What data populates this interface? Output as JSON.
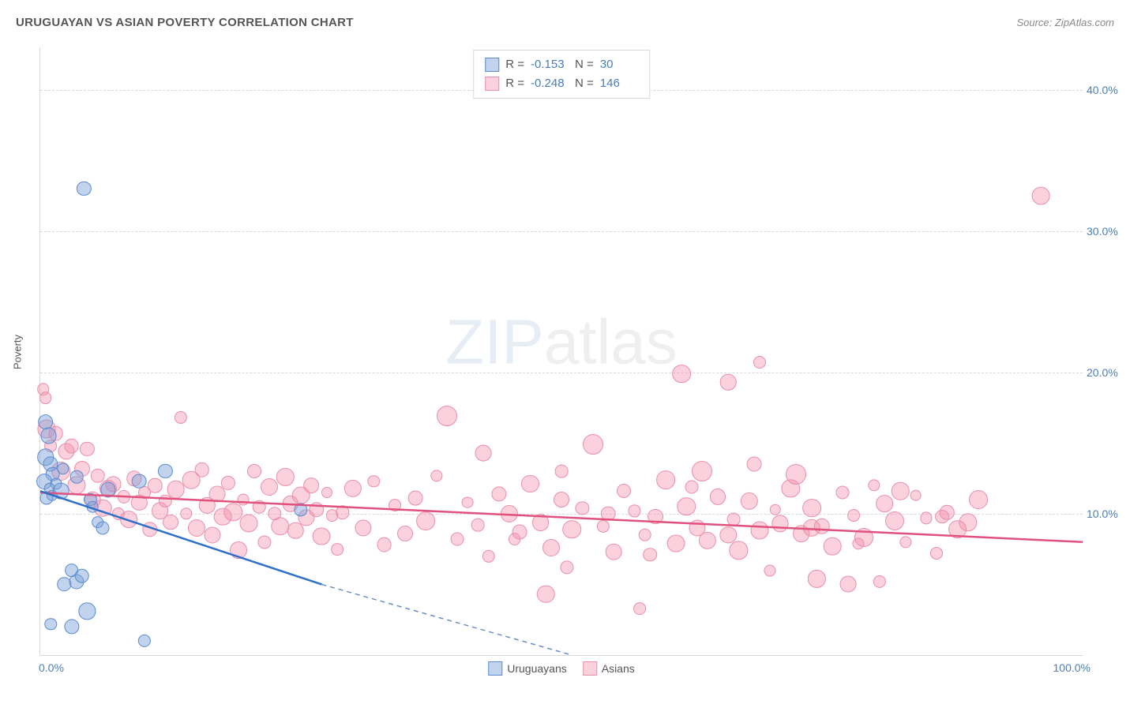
{
  "header": {
    "title": "URUGUAYAN VS ASIAN POVERTY CORRELATION CHART",
    "source": "Source: ZipAtlas.com"
  },
  "axes": {
    "y_label": "Poverty",
    "x_min": 0,
    "x_max": 100,
    "y_min": 0,
    "y_max": 43,
    "y_ticks": [
      10,
      20,
      30,
      40
    ],
    "y_tick_labels": [
      "10.0%",
      "20.0%",
      "30.0%",
      "40.0%"
    ],
    "x_tick_left": "0.0%",
    "x_tick_right": "100.0%",
    "grid_color": "#d9d9d9",
    "tick_color": "#4a7ebb",
    "tick_fontsize": 14,
    "label_fontsize": 13
  },
  "watermark": {
    "text_bold": "ZIP",
    "text_light": "atlas"
  },
  "series": {
    "uruguayans": {
      "label": "Uruguayans",
      "fill": "rgba(120,160,216,0.45)",
      "stroke": "#5b8bd0",
      "marker_radius_min": 7,
      "marker_radius_max": 11,
      "trend": {
        "x1": 0,
        "y1": 11.6,
        "x2": 27,
        "y2": 5.0,
        "x2_ext": 51,
        "y2_ext": 0.0,
        "solid_color": "#2f6fc9",
        "dash_color": "#6a8fc0",
        "width": 2.5
      },
      "R": "-0.153",
      "N": "30",
      "points": [
        [
          0.5,
          16.5
        ],
        [
          0.8,
          15.5
        ],
        [
          0.5,
          14.0
        ],
        [
          1.0,
          13.5
        ],
        [
          1.2,
          12.8
        ],
        [
          0.4,
          12.3
        ],
        [
          1.5,
          12.1
        ],
        [
          0.9,
          11.8
        ],
        [
          2.0,
          11.6
        ],
        [
          1.1,
          11.3
        ],
        [
          0.6,
          11.1
        ],
        [
          2.2,
          13.2
        ],
        [
          3.5,
          12.6
        ],
        [
          4.2,
          33.0
        ],
        [
          4.8,
          11.0
        ],
        [
          5.0,
          10.5
        ],
        [
          5.5,
          9.4
        ],
        [
          6.0,
          9.0
        ],
        [
          3.0,
          6.0
        ],
        [
          3.5,
          5.2
        ],
        [
          4.0,
          5.6
        ],
        [
          2.3,
          5.0
        ],
        [
          4.5,
          3.1
        ],
        [
          3.0,
          2.0
        ],
        [
          1.0,
          2.2
        ],
        [
          6.5,
          11.7
        ],
        [
          9.5,
          12.3
        ],
        [
          12.0,
          13.0
        ],
        [
          10.0,
          1.0
        ],
        [
          25.0,
          10.3
        ]
      ]
    },
    "asians": {
      "label": "Asians",
      "fill": "rgba(245,140,170,0.40)",
      "stroke": "#e98fab",
      "marker_radius_min": 7,
      "marker_radius_max": 12,
      "trend": {
        "x1": 0,
        "y1": 11.5,
        "x2": 100,
        "y2": 8.0,
        "solid_color": "#e0527d",
        "width": 2.5
      },
      "R": "-0.248",
      "N": "146",
      "points": [
        [
          0.3,
          18.8
        ],
        [
          0.5,
          18.2
        ],
        [
          0.6,
          16.0
        ],
        [
          1.0,
          14.8
        ],
        [
          1.5,
          15.7
        ],
        [
          2.0,
          13.0
        ],
        [
          2.5,
          14.4
        ],
        [
          3.0,
          14.8
        ],
        [
          3.5,
          12.0
        ],
        [
          4.0,
          13.2
        ],
        [
          4.5,
          14.6
        ],
        [
          5.0,
          11.0
        ],
        [
          5.5,
          12.7
        ],
        [
          6.0,
          10.4
        ],
        [
          6.5,
          11.8
        ],
        [
          7.0,
          12.1
        ],
        [
          7.5,
          10.0
        ],
        [
          8.0,
          11.2
        ],
        [
          8.5,
          9.6
        ],
        [
          9.0,
          12.5
        ],
        [
          9.5,
          10.8
        ],
        [
          10.0,
          11.5
        ],
        [
          10.5,
          8.9
        ],
        [
          11.0,
          12.0
        ],
        [
          11.5,
          10.2
        ],
        [
          12.0,
          10.9
        ],
        [
          12.5,
          9.4
        ],
        [
          13.0,
          11.7
        ],
        [
          13.5,
          16.8
        ],
        [
          14.0,
          10.0
        ],
        [
          14.5,
          12.4
        ],
        [
          15.0,
          9.0
        ],
        [
          15.5,
          13.1
        ],
        [
          16.0,
          10.6
        ],
        [
          16.5,
          8.5
        ],
        [
          17.0,
          11.4
        ],
        [
          17.5,
          9.8
        ],
        [
          18.0,
          12.2
        ],
        [
          18.5,
          10.1
        ],
        [
          19.0,
          7.4
        ],
        [
          19.5,
          11.0
        ],
        [
          20.0,
          9.3
        ],
        [
          20.5,
          13.0
        ],
        [
          21.0,
          10.5
        ],
        [
          21.5,
          8.0
        ],
        [
          22.0,
          11.9
        ],
        [
          22.5,
          10.0
        ],
        [
          23.0,
          9.1
        ],
        [
          23.5,
          12.6
        ],
        [
          24.0,
          10.7
        ],
        [
          24.5,
          8.8
        ],
        [
          25.0,
          11.3
        ],
        [
          25.5,
          9.7
        ],
        [
          26.0,
          12.0
        ],
        [
          26.5,
          10.3
        ],
        [
          27.0,
          8.4
        ],
        [
          27.5,
          11.5
        ],
        [
          28.0,
          9.9
        ],
        [
          28.5,
          7.5
        ],
        [
          29.0,
          10.1
        ],
        [
          30.0,
          11.8
        ],
        [
          31.0,
          9.0
        ],
        [
          32.0,
          12.3
        ],
        [
          33.0,
          7.8
        ],
        [
          34.0,
          10.6
        ],
        [
          35.0,
          8.6
        ],
        [
          36.0,
          11.1
        ],
        [
          37.0,
          9.5
        ],
        [
          38.0,
          12.7
        ],
        [
          39.0,
          16.9,
          13
        ],
        [
          40.0,
          8.2
        ],
        [
          41.0,
          10.8
        ],
        [
          42.0,
          9.2
        ],
        [
          42.5,
          14.3
        ],
        [
          43.0,
          7.0
        ],
        [
          44.0,
          11.4
        ],
        [
          45.0,
          10.0
        ],
        [
          46.0,
          8.7
        ],
        [
          47.0,
          12.1
        ],
        [
          48.0,
          9.4
        ],
        [
          48.5,
          4.3
        ],
        [
          49.0,
          7.6
        ],
        [
          50.0,
          11.0
        ],
        [
          51.0,
          8.9
        ],
        [
          52.0,
          10.4
        ],
        [
          53.0,
          14.9,
          13
        ],
        [
          54.0,
          9.1
        ],
        [
          55.0,
          7.3
        ],
        [
          56.0,
          11.6
        ],
        [
          57.0,
          10.2
        ],
        [
          57.5,
          3.3
        ],
        [
          58.0,
          8.5
        ],
        [
          59.0,
          9.8
        ],
        [
          60.0,
          12.4
        ],
        [
          61.0,
          7.9
        ],
        [
          61.5,
          19.9
        ],
        [
          62.0,
          10.5
        ],
        [
          63.0,
          9.0
        ],
        [
          63.5,
          13.0,
          13
        ],
        [
          64.0,
          8.1
        ],
        [
          65.0,
          11.2
        ],
        [
          66.0,
          19.3
        ],
        [
          66.5,
          9.6
        ],
        [
          67.0,
          7.4
        ],
        [
          68.0,
          10.9
        ],
        [
          68.5,
          13.5
        ],
        [
          69.0,
          8.8
        ],
        [
          70.0,
          6.0
        ],
        [
          71.0,
          9.3
        ],
        [
          72.0,
          11.8
        ],
        [
          72.5,
          12.8,
          13
        ],
        [
          73.0,
          8.6
        ],
        [
          74.0,
          10.4
        ],
        [
          74.5,
          5.4
        ],
        [
          75.0,
          9.1
        ],
        [
          76.0,
          7.7
        ],
        [
          77.0,
          11.5
        ],
        [
          77.5,
          5.0
        ],
        [
          78.0,
          9.9
        ],
        [
          79.0,
          8.3
        ],
        [
          80.0,
          12.0
        ],
        [
          80.5,
          5.2
        ],
        [
          81.0,
          10.7
        ],
        [
          82.0,
          9.5,
          12
        ],
        [
          83.0,
          8.0
        ],
        [
          84.0,
          11.3
        ],
        [
          85.0,
          9.7
        ],
        [
          86.0,
          7.2
        ],
        [
          87.0,
          10.1
        ],
        [
          88.0,
          8.9
        ],
        [
          89.0,
          9.4
        ],
        [
          90.0,
          11.0
        ],
        [
          69.0,
          20.7
        ],
        [
          96.0,
          32.5
        ],
        [
          45.5,
          8.2
        ],
        [
          50.5,
          6.2
        ],
        [
          54.5,
          10.0
        ],
        [
          58.5,
          7.1
        ],
        [
          62.5,
          11.9
        ],
        [
          66.0,
          8.5
        ],
        [
          70.5,
          10.3
        ],
        [
          74.0,
          9.0
        ],
        [
          78.5,
          7.9
        ],
        [
          82.5,
          11.6
        ],
        [
          86.5,
          9.8
        ],
        [
          50.0,
          13.0
        ]
      ]
    }
  },
  "stats_box": {
    "R_label": "R =",
    "N_label": "N ="
  },
  "colors": {
    "background": "#ffffff"
  }
}
